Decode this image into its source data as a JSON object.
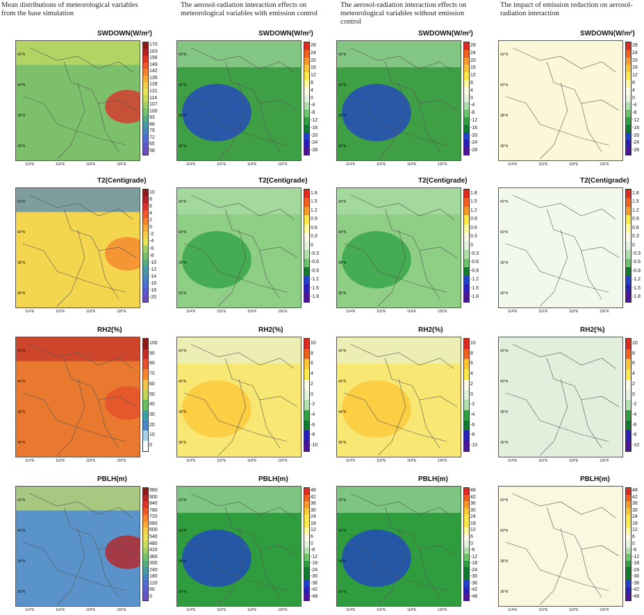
{
  "columns": [
    {
      "heading": "Mean distributions of meteorological variables from the base simulation"
    },
    {
      "heading": "The aerosol-radiation interaction effects on meteorological variables with emission control"
    },
    {
      "heading": "The aerosol-radiation interaction effects on meteorological variables without emission control"
    },
    {
      "heading": "The impact of emission reduction on aerosol-radiation interaction"
    }
  ],
  "rows": [
    {
      "variable": "SWDOWN(W/m²)"
    },
    {
      "variable": "T2(Centigrade)"
    },
    {
      "variable": "RH2(%)"
    },
    {
      "variable": "PBLH(m)"
    }
  ],
  "lat_labels": [
    "42°N",
    "40°N",
    "38°N",
    "36°N"
  ],
  "lon_labels": [
    "114°E",
    "116°E",
    "118°E",
    "120°E"
  ],
  "colorbars": {
    "swdown_mean": [
      "170",
      "163",
      "156",
      "149",
      "142",
      "135",
      "128",
      "121",
      "114",
      "107",
      "100",
      "93",
      "86",
      "79",
      "72",
      "65",
      "58"
    ],
    "swdown_diff": [
      "28",
      "24",
      "20",
      "16",
      "12",
      "8",
      "4",
      "0",
      "-4",
      "-8",
      "-12",
      "-16",
      "-20",
      "-24",
      "-28"
    ],
    "t2_mean": [
      "10",
      "8",
      "6",
      "4",
      "2",
      "0",
      "-2",
      "-4",
      "-6",
      "-8",
      "-10",
      "-12",
      "-14",
      "-16",
      "-18",
      "-20"
    ],
    "t2_diff": [
      "1.8",
      "1.5",
      "1.2",
      "0.9",
      "0.6",
      "0.3",
      "0",
      "-0.3",
      "-0.6",
      "-0.9",
      "-1.2",
      "-1.5",
      "-1.8"
    ],
    "rh2_mean": [
      "100",
      "90",
      "80",
      "70",
      "60",
      "50",
      "40",
      "30",
      "20",
      "10",
      "0"
    ],
    "rh2_diff": [
      "10",
      "8",
      "6",
      "4",
      "2",
      "0",
      "-2",
      "-4",
      "-6",
      "-8",
      "-10"
    ],
    "pblh_mean": [
      "960",
      "900",
      "840",
      "780",
      "720",
      "660",
      "600",
      "540",
      "480",
      "420",
      "360",
      "300",
      "240",
      "180",
      "120",
      "60",
      "0"
    ],
    "pblh_diff": [
      "48",
      "42",
      "36",
      "30",
      "24",
      "18",
      "12",
      "6",
      "0",
      "-6",
      "-12",
      "-18",
      "-24",
      "-30",
      "-36",
      "-42",
      "-48"
    ]
  },
  "palettes": {
    "seq_mean": [
      "#8b1a1a",
      "#b52424",
      "#d9352a",
      "#ec5a2c",
      "#f5862f",
      "#f9ad3a",
      "#f7cf4b",
      "#e9e35c",
      "#c9dd63",
      "#9fcf66",
      "#78bf6c",
      "#58aa80",
      "#4a97a5",
      "#4a84c1",
      "#4f6fcf",
      "#5a5ac8",
      "#6a4fb5"
    ],
    "div": [
      "#e02a1f",
      "#f0611f",
      "#f89a2b",
      "#fcc634",
      "#fde94a",
      "#fffaa0",
      "#fbfbe8",
      "#e4f2e0",
      "#b2dfae",
      "#6dc46a",
      "#2ea043",
      "#127a2f",
      "#2240c8",
      "#2a20b8",
      "#4b1599"
    ],
    "rh_mean": [
      "#8b1a1a",
      "#c2302a",
      "#e4502c",
      "#f58a33",
      "#f3c54a",
      "#bfd45a",
      "#6cbe62",
      "#3f9fa2",
      "#4c86c8",
      "#a8d0ea",
      "#ffffff"
    ]
  },
  "map_colors": {
    "swdown_mean": "#7dc06b",
    "swdown_diff": "#3e9f44",
    "swdown_impact": "#fbf7d8",
    "t2_mean": "#f4d64e",
    "t2_diff": "#8fcf85",
    "t2_impact": "#f3f8ec",
    "rh2_mean": "#e8792f",
    "rh2_diff": "#f8e873",
    "rh2_impact": "#e2efdc",
    "pblh_mean": "#5a93c9",
    "pblh_diff": "#2f9d3e",
    "pblh_impact": "#fbf8e0",
    "border": "#555555"
  }
}
